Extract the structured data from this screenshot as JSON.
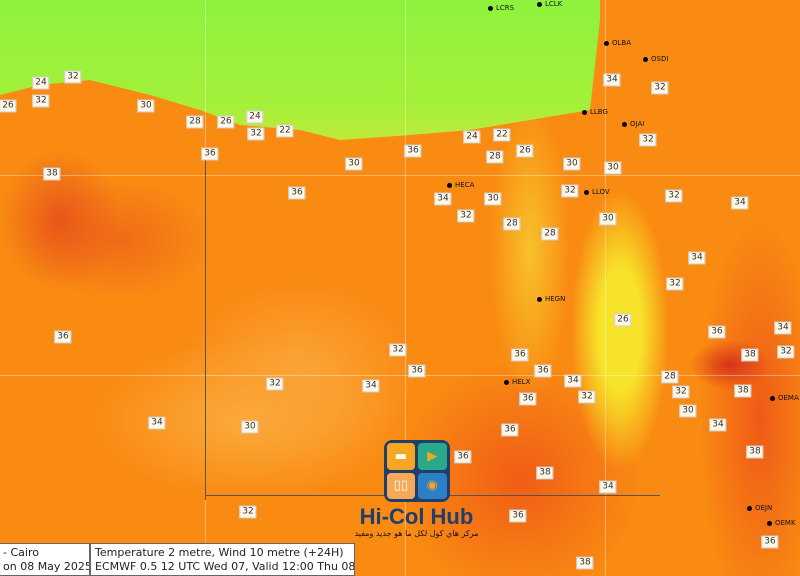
{
  "map": {
    "temperature_labels": [
      "24",
      "32",
      "26",
      "32",
      "30",
      "28",
      "26",
      "24",
      "32",
      "22",
      "36",
      "38",
      "30",
      "36",
      "24",
      "22",
      "26",
      "28",
      "30",
      "30",
      "32",
      "30",
      "34",
      "32",
      "32",
      "32",
      "34",
      "36",
      "34",
      "32",
      "30",
      "28",
      "28",
      "34",
      "32",
      "26",
      "36",
      "34",
      "32",
      "38",
      "36",
      "32",
      "36",
      "36",
      "36",
      "32",
      "34",
      "34",
      "36",
      "28",
      "32",
      "38",
      "30",
      "34",
      "32",
      "34",
      "30",
      "36",
      "36",
      "38",
      "38",
      "34",
      "32",
      "36",
      "38",
      "36"
    ],
    "cities": [
      "LCRS",
      "LCLK",
      "OLBA",
      "OSDI",
      "LLBG",
      "OJAI",
      "HECA",
      "LLOV",
      "HEGN",
      "HELX",
      "OEMA",
      "OEJN",
      "OEMK"
    ],
    "colors": {
      "sea": "#9ef03a",
      "hot": "#f98a12",
      "very_hot": "#d8331a",
      "mild": "#f7e42a"
    }
  },
  "caption": {
    "location_line1": "- Cairo",
    "location_line2": "on 08 May 2025",
    "title_line1": "Temperature  2 metre, Wind  10 metre (+24H)",
    "title_line2": "ECMWF 0.5 12 UTC Wed 07, Valid 12:00 Thu 08"
  },
  "watermark": {
    "brand": "Hi-Col Hub",
    "tagline": "مركز هاي كول لكل ما هو جديد ومفيد"
  }
}
